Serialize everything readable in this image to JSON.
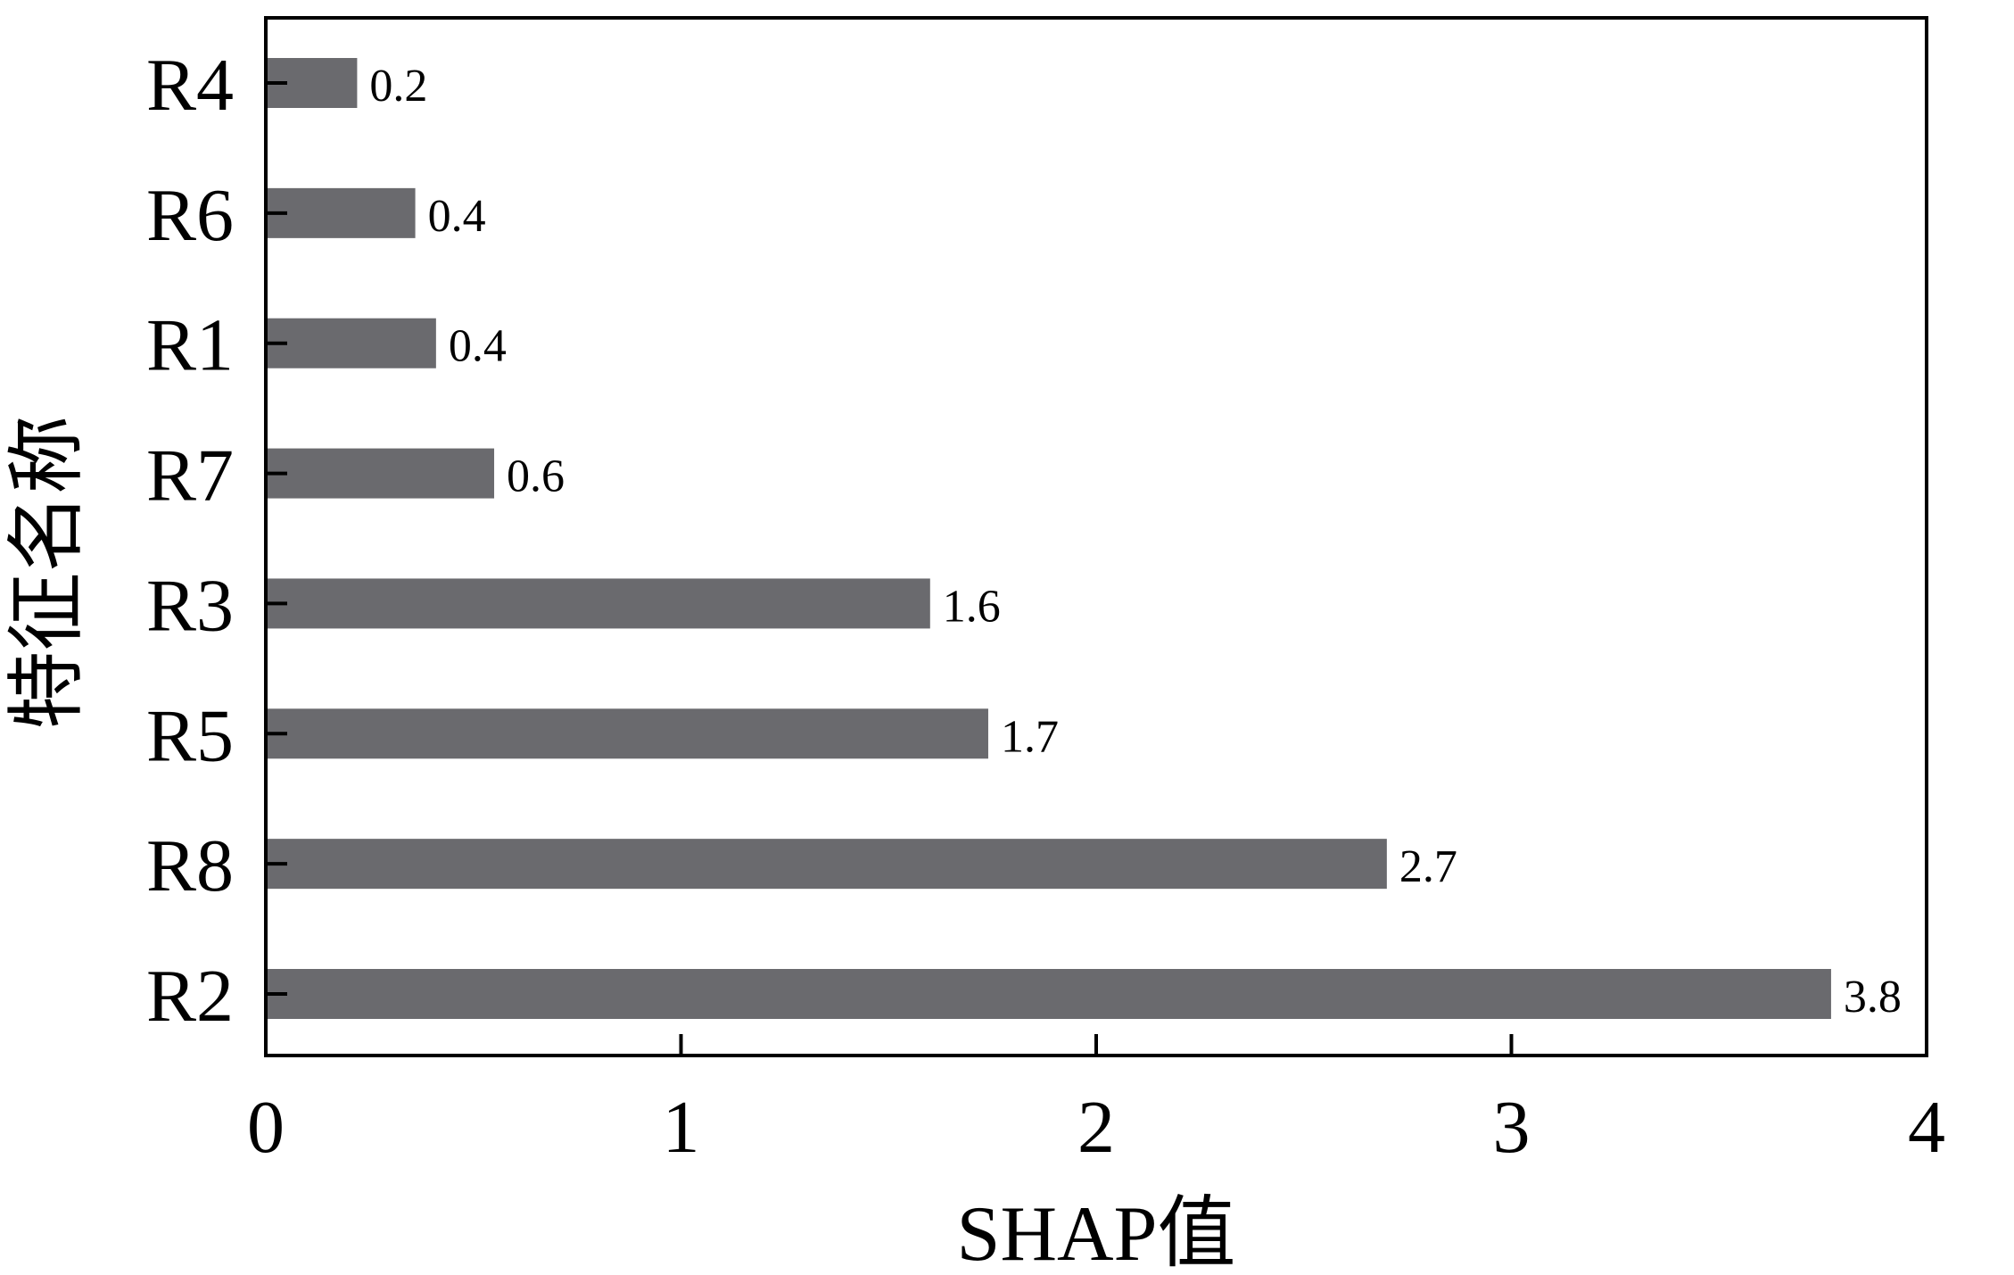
{
  "chart_data": {
    "type": "bar",
    "orientation": "horizontal",
    "categories": [
      "R4",
      "R6",
      "R1",
      "R7",
      "R3",
      "R5",
      "R8",
      "R2"
    ],
    "values": [
      0.22,
      0.36,
      0.41,
      0.55,
      1.6,
      1.74,
      2.7,
      3.77
    ],
    "data_labels": [
      "0.2",
      "0.4",
      "0.4",
      "0.6",
      "1.6",
      "1.7",
      "2.7",
      "3.8"
    ],
    "title": "",
    "xlabel": "SHAP值",
    "ylabel": "特征名称",
    "xlim": [
      0,
      4
    ],
    "xticks": [
      "0",
      "1",
      "2",
      "3",
      "4"
    ],
    "grid": false,
    "bar_color": "#6a6a6e"
  }
}
